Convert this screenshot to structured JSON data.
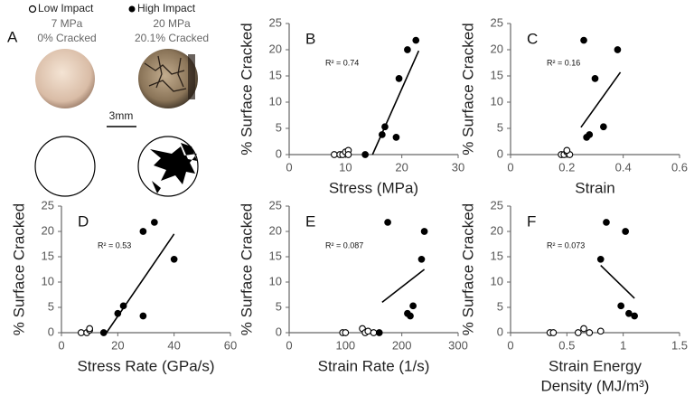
{
  "panel_a": {
    "label": "A",
    "low_impact": [
      "7 MPa",
      "0% Cracked"
    ],
    "high_impact": [
      "20 MPa",
      "20.1% Cracked"
    ],
    "scale_bar": "3mm"
  },
  "chart_data": [
    {
      "type": "scatter",
      "panel": "B",
      "ylabel": "% Surface Cracked",
      "xlabel": [
        "Stress (MPa)"
      ],
      "annotation": "R² = 0.74",
      "xlim": [
        0,
        30
      ],
      "xticks": [
        0,
        10,
        20,
        30
      ],
      "ylim": [
        0,
        25
      ],
      "yticks": [
        0,
        5,
        10,
        15,
        20,
        25
      ],
      "series": [
        {
          "name": "Low Impact",
          "color": "#000000",
          "marker": "open",
          "x": [
            8,
            9,
            9.5,
            10,
            10.5,
            10.5
          ],
          "values": [
            0,
            0,
            0,
            0.5,
            0.8,
            0
          ]
        },
        {
          "name": "High Impact",
          "color": "#000000",
          "marker": "filled",
          "x": [
            13.5,
            16.5,
            17,
            19,
            19.5,
            21,
            22.5
          ],
          "values": [
            0,
            3.8,
            5.3,
            3.3,
            14.5,
            20,
            21.8
          ]
        }
      ],
      "trendline": {
        "x": [
          14.8,
          23
        ],
        "values": [
          0,
          19.8
        ]
      }
    },
    {
      "type": "scatter",
      "panel": "C",
      "ylabel": "% Surface Cracked",
      "xlabel": [
        "Strain"
      ],
      "annotation": "R² = 0.16",
      "xlim": [
        0,
        0.6
      ],
      "xticks": [
        0,
        0.2,
        0.4,
        0.6
      ],
      "ylim": [
        0,
        25
      ],
      "yticks": [
        0,
        5,
        10,
        15,
        20,
        25
      ],
      "series": [
        {
          "color": "#000000",
          "marker": "open",
          "x": [
            0.18,
            0.19,
            0.2,
            0.21,
            0.2
          ],
          "values": [
            0,
            0,
            0.5,
            0,
            0.8
          ]
        },
        {
          "color": "#000000",
          "marker": "filled",
          "x": [
            0.26,
            0.38,
            0.3,
            0.33,
            0.28,
            0.27
          ],
          "values": [
            21.8,
            20,
            14.5,
            5.3,
            3.8,
            3.3
          ]
        }
      ],
      "trendline": {
        "x": [
          0.25,
          0.39
        ],
        "values": [
          5.2,
          15.7
        ]
      }
    },
    {
      "type": "scatter",
      "panel": "D",
      "ylabel": "% Surface Cracked",
      "xlabel": [
        "Stress Rate (GPa/s)"
      ],
      "annotation": "R² = 0.53",
      "xlim": [
        0,
        60
      ],
      "xticks": [
        0,
        20,
        40,
        60
      ],
      "ylim": [
        0,
        25
      ],
      "yticks": [
        0,
        5,
        10,
        15,
        20,
        25
      ],
      "series": [
        {
          "color": "#000000",
          "marker": "open",
          "x": [
            7,
            9,
            10,
            10
          ],
          "values": [
            0,
            0,
            0.5,
            0.8
          ]
        },
        {
          "color": "#000000",
          "marker": "filled",
          "x": [
            15,
            20,
            22,
            29,
            29,
            33,
            40
          ],
          "values": [
            0,
            3.8,
            5.3,
            3.3,
            20,
            21.8,
            14.5
          ]
        }
      ],
      "trendline": {
        "x": [
          16,
          40
        ],
        "values": [
          0,
          19.5
        ]
      }
    },
    {
      "type": "scatter",
      "panel": "E",
      "ylabel": "% Surface Cracked",
      "xlabel": [
        "Strain Rate (1/s)"
      ],
      "annotation": "R² = 0.087",
      "xlim": [
        0,
        300
      ],
      "xticks": [
        0,
        100,
        200,
        300
      ],
      "ylim": [
        0,
        25
      ],
      "yticks": [
        0,
        5,
        10,
        15,
        20,
        25
      ],
      "series": [
        {
          "color": "#000000",
          "marker": "open",
          "x": [
            95,
            100,
            130,
            135,
            140,
            150
          ],
          "values": [
            0,
            0,
            0.8,
            0,
            0.3,
            0
          ]
        },
        {
          "color": "#000000",
          "marker": "filled",
          "x": [
            160,
            175,
            210,
            215,
            220,
            235,
            240
          ],
          "values": [
            0,
            21.8,
            3.8,
            3.3,
            5.3,
            14.5,
            20
          ]
        }
      ],
      "trendline": {
        "x": [
          165,
          240
        ],
        "values": [
          6,
          12.5
        ]
      }
    },
    {
      "type": "scatter",
      "panel": "F",
      "ylabel": "% Surface Cracked",
      "xlabel": [
        "Strain Energy",
        "Density (MJ/m³)"
      ],
      "annotation": "R² = 0.073",
      "xlim": [
        0,
        1.5
      ],
      "xticks": [
        0,
        0.5,
        1,
        1.5
      ],
      "ylim": [
        0,
        25
      ],
      "yticks": [
        0,
        5,
        10,
        15,
        20,
        25
      ],
      "series": [
        {
          "color": "#000000",
          "marker": "open",
          "x": [
            0.35,
            0.38,
            0.6,
            0.65,
            0.7,
            0.8
          ],
          "values": [
            0,
            0,
            0,
            0.8,
            0,
            0.3
          ]
        },
        {
          "color": "#000000",
          "marker": "filled",
          "x": [
            0.8,
            0.85,
            0.98,
            1.02,
            1.05,
            1.1
          ],
          "values": [
            14.5,
            21.8,
            5.3,
            20,
            3.8,
            3.3
          ]
        }
      ],
      "trendline": {
        "x": [
          0.8,
          1.1
        ],
        "values": [
          13.3,
          6.8
        ]
      }
    }
  ]
}
